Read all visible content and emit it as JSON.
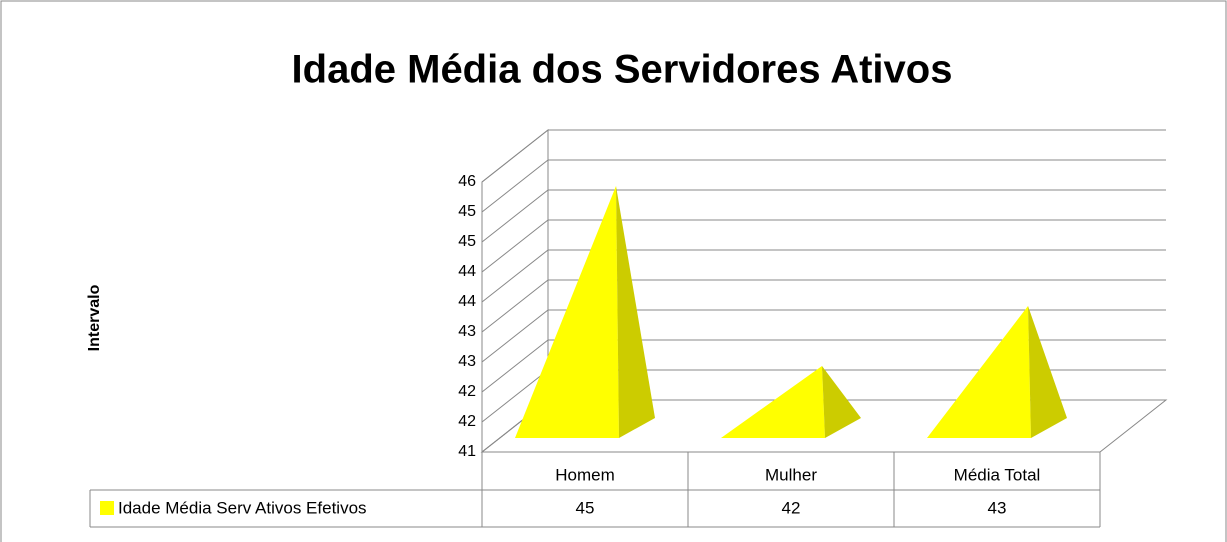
{
  "chart_data": {
    "type": "pyramid",
    "title": "Idade Média dos Servidores Ativos",
    "ylabel": "Intervalo",
    "categories": [
      "Homem",
      "Mulher",
      "Média Total"
    ],
    "series": [
      {
        "name": "Idade Média Serv Ativos Efetivos",
        "color": "#ffff00",
        "values": [
          45,
          42,
          43
        ]
      }
    ],
    "ylim": [
      41,
      45.5
    ],
    "yticks": [
      41,
      {
        "value": 41.5,
        "label": "42"
      },
      42,
      {
        "value": 42.5,
        "label": "43"
      },
      43,
      {
        "value": 43.5,
        "label": "44"
      },
      44,
      {
        "value": 44.5,
        "label": "45"
      },
      45,
      {
        "value": 45.5,
        "label": "46"
      }
    ],
    "grid": true,
    "data_table": true
  }
}
